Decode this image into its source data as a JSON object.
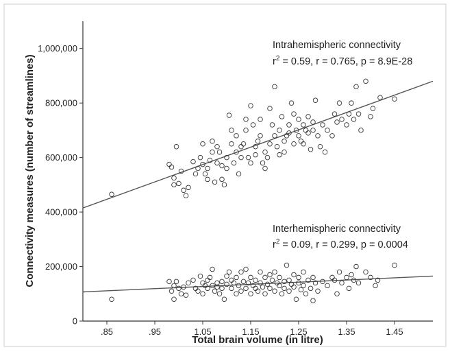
{
  "chart_data": {
    "type": "scatter",
    "xlabel": "Total brain volume (in litre)",
    "ylabel": "Connectivity measures (number of streamlines)",
    "xlim": [
      0.8,
      1.53
    ],
    "ylim": [
      0,
      1100000
    ],
    "x_ticks": [
      ".85",
      ".95",
      "1.05",
      "1.15",
      "1.25",
      "1.35",
      "1.45"
    ],
    "x_tick_values": [
      0.85,
      0.95,
      1.05,
      1.15,
      1.25,
      1.35,
      1.45
    ],
    "y_ticks": [
      "0",
      "200,000",
      "400,000",
      "600,000",
      "800,000",
      "1,000,000"
    ],
    "y_tick_values": [
      0,
      200000,
      400000,
      600000,
      800000,
      1000000
    ],
    "grid": false,
    "colors": {
      "markers": "#333333",
      "fit_line": "#555555",
      "axis": "#333333"
    },
    "annotations": [
      {
        "id": "intra",
        "line1": "Intrahemispheric connectivity",
        "line2_prefix": "r",
        "line2_sup": "2",
        "line2_rest": " = 0.59, r = 0.765, p = 8.9E-28"
      },
      {
        "id": "inter",
        "line1": "Interhemispheric connectivity",
        "line2_prefix": "r",
        "line2_sup": "2",
        "line2_rest": " = 0.09, r = 0.299, p = 0.0004"
      }
    ],
    "series": [
      {
        "fit": {
          "x": [
            0.8,
            1.53
          ],
          "y": [
            415000,
            880000
          ]
        },
        "points": [
          [
            0.86,
            465000
          ],
          [
            0.98,
            575000
          ],
          [
            0.985,
            565000
          ],
          [
            0.99,
            500000
          ],
          [
            0.99,
            525000
          ],
          [
            0.995,
            640000
          ],
          [
            1.0,
            505000
          ],
          [
            1.005,
            550000
          ],
          [
            1.01,
            480000
          ],
          [
            1.015,
            460000
          ],
          [
            1.02,
            490000
          ],
          [
            1.03,
            585000
          ],
          [
            1.035,
            540000
          ],
          [
            1.04,
            560000
          ],
          [
            1.045,
            600000
          ],
          [
            1.05,
            650000
          ],
          [
            1.05,
            575000
          ],
          [
            1.055,
            540000
          ],
          [
            1.06,
            520000
          ],
          [
            1.06,
            560000
          ],
          [
            1.065,
            590000
          ],
          [
            1.07,
            660000
          ],
          [
            1.07,
            620000
          ],
          [
            1.075,
            510000
          ],
          [
            1.08,
            580000
          ],
          [
            1.08,
            640000
          ],
          [
            1.085,
            620000
          ],
          [
            1.09,
            570000
          ],
          [
            1.09,
            520000
          ],
          [
            1.095,
            500000
          ],
          [
            1.1,
            560000
          ],
          [
            1.1,
            600000
          ],
          [
            1.105,
            755000
          ],
          [
            1.11,
            700000
          ],
          [
            1.11,
            650000
          ],
          [
            1.115,
            580000
          ],
          [
            1.12,
            680000
          ],
          [
            1.12,
            620000
          ],
          [
            1.125,
            540000
          ],
          [
            1.13,
            600000
          ],
          [
            1.13,
            640000
          ],
          [
            1.135,
            650000
          ],
          [
            1.14,
            740000
          ],
          [
            1.14,
            700000
          ],
          [
            1.145,
            600000
          ],
          [
            1.15,
            580000
          ],
          [
            1.15,
            790000
          ],
          [
            1.155,
            720000
          ],
          [
            1.16,
            640000
          ],
          [
            1.16,
            610000
          ],
          [
            1.165,
            660000
          ],
          [
            1.17,
            680000
          ],
          [
            1.17,
            740000
          ],
          [
            1.175,
            580000
          ],
          [
            1.18,
            620000
          ],
          [
            1.18,
            560000
          ],
          [
            1.185,
            600000
          ],
          [
            1.19,
            650000
          ],
          [
            1.19,
            780000
          ],
          [
            1.195,
            720000
          ],
          [
            1.2,
            860000
          ],
          [
            1.2,
            680000
          ],
          [
            1.205,
            640000
          ],
          [
            1.21,
            610000
          ],
          [
            1.21,
            700000
          ],
          [
            1.215,
            750000
          ],
          [
            1.22,
            660000
          ],
          [
            1.22,
            620000
          ],
          [
            1.225,
            680000
          ],
          [
            1.23,
            690000
          ],
          [
            1.23,
            720000
          ],
          [
            1.235,
            800000
          ],
          [
            1.24,
            650000
          ],
          [
            1.24,
            760000
          ],
          [
            1.245,
            700000
          ],
          [
            1.25,
            680000
          ],
          [
            1.25,
            740000
          ],
          [
            1.255,
            660000
          ],
          [
            1.26,
            720000
          ],
          [
            1.26,
            650000
          ],
          [
            1.265,
            700000
          ],
          [
            1.27,
            690000
          ],
          [
            1.27,
            750000
          ],
          [
            1.275,
            630000
          ],
          [
            1.28,
            730000
          ],
          [
            1.28,
            700000
          ],
          [
            1.285,
            810000
          ],
          [
            1.29,
            680000
          ],
          [
            1.295,
            640000
          ],
          [
            1.3,
            720000
          ],
          [
            1.305,
            620000
          ],
          [
            1.31,
            700000
          ],
          [
            1.32,
            680000
          ],
          [
            1.325,
            760000
          ],
          [
            1.33,
            730000
          ],
          [
            1.335,
            800000
          ],
          [
            1.34,
            740000
          ],
          [
            1.35,
            720000
          ],
          [
            1.355,
            760000
          ],
          [
            1.36,
            800000
          ],
          [
            1.365,
            740000
          ],
          [
            1.37,
            860000
          ],
          [
            1.375,
            760000
          ],
          [
            1.38,
            700000
          ],
          [
            1.39,
            880000
          ],
          [
            1.4,
            750000
          ],
          [
            1.405,
            780000
          ],
          [
            1.42,
            820000
          ],
          [
            1.45,
            815000
          ]
        ]
      },
      {
        "fit": {
          "x": [
            0.8,
            1.53
          ],
          "y": [
            107000,
            165000
          ]
        },
        "points": [
          [
            0.86,
            80000
          ],
          [
            0.98,
            145000
          ],
          [
            0.985,
            110000
          ],
          [
            0.99,
            130000
          ],
          [
            0.99,
            80000
          ],
          [
            0.995,
            145000
          ],
          [
            1.0,
            120000
          ],
          [
            1.005,
            100000
          ],
          [
            1.01,
            125000
          ],
          [
            1.015,
            95000
          ],
          [
            1.02,
            140000
          ],
          [
            1.03,
            150000
          ],
          [
            1.035,
            120000
          ],
          [
            1.04,
            110000
          ],
          [
            1.045,
            165000
          ],
          [
            1.05,
            100000
          ],
          [
            1.05,
            140000
          ],
          [
            1.055,
            130000
          ],
          [
            1.06,
            150000
          ],
          [
            1.06,
            120000
          ],
          [
            1.065,
            160000
          ],
          [
            1.07,
            190000
          ],
          [
            1.07,
            130000
          ],
          [
            1.075,
            110000
          ],
          [
            1.08,
            140000
          ],
          [
            1.08,
            125000
          ],
          [
            1.085,
            100000
          ],
          [
            1.09,
            145000
          ],
          [
            1.09,
            120000
          ],
          [
            1.095,
            80000
          ],
          [
            1.1,
            135000
          ],
          [
            1.1,
            165000
          ],
          [
            1.105,
            180000
          ],
          [
            1.11,
            150000
          ],
          [
            1.11,
            120000
          ],
          [
            1.115,
            140000
          ],
          [
            1.12,
            100000
          ],
          [
            1.12,
            160000
          ],
          [
            1.125,
            130000
          ],
          [
            1.13,
            110000
          ],
          [
            1.13,
            180000
          ],
          [
            1.135,
            145000
          ],
          [
            1.14,
            190000
          ],
          [
            1.14,
            120000
          ],
          [
            1.145,
            140000
          ],
          [
            1.15,
            160000
          ],
          [
            1.15,
            100000
          ],
          [
            1.155,
            130000
          ],
          [
            1.16,
            150000
          ],
          [
            1.16,
            120000
          ],
          [
            1.165,
            110000
          ],
          [
            1.17,
            180000
          ],
          [
            1.17,
            140000
          ],
          [
            1.175,
            125000
          ],
          [
            1.18,
            160000
          ],
          [
            1.18,
            100000
          ],
          [
            1.185,
            135000
          ],
          [
            1.19,
            170000
          ],
          [
            1.19,
            120000
          ],
          [
            1.195,
            150000
          ],
          [
            1.2,
            180000
          ],
          [
            1.2,
            110000
          ],
          [
            1.205,
            140000
          ],
          [
            1.21,
            160000
          ],
          [
            1.21,
            130000
          ],
          [
            1.215,
            100000
          ],
          [
            1.22,
            145000
          ],
          [
            1.22,
            120000
          ],
          [
            1.225,
            205000
          ],
          [
            1.23,
            150000
          ],
          [
            1.23,
            110000
          ],
          [
            1.235,
            135000
          ],
          [
            1.24,
            170000
          ],
          [
            1.24,
            125000
          ],
          [
            1.245,
            80000
          ],
          [
            1.25,
            140000
          ],
          [
            1.25,
            160000
          ],
          [
            1.255,
            115000
          ],
          [
            1.26,
            180000
          ],
          [
            1.26,
            130000
          ],
          [
            1.265,
            100000
          ],
          [
            1.27,
            150000
          ],
          [
            1.275,
            120000
          ],
          [
            1.28,
            75000
          ],
          [
            1.28,
            160000
          ],
          [
            1.285,
            140000
          ],
          [
            1.29,
            110000
          ],
          [
            1.3,
            145000
          ],
          [
            1.31,
            130000
          ],
          [
            1.32,
            160000
          ],
          [
            1.325,
            150000
          ],
          [
            1.33,
            100000
          ],
          [
            1.335,
            180000
          ],
          [
            1.34,
            140000
          ],
          [
            1.35,
            160000
          ],
          [
            1.355,
            120000
          ],
          [
            1.36,
            170000
          ],
          [
            1.365,
            150000
          ],
          [
            1.37,
            200000
          ],
          [
            1.375,
            140000
          ],
          [
            1.39,
            180000
          ],
          [
            1.4,
            160000
          ],
          [
            1.41,
            130000
          ],
          [
            1.415,
            150000
          ],
          [
            1.45,
            205000
          ]
        ]
      }
    ]
  }
}
